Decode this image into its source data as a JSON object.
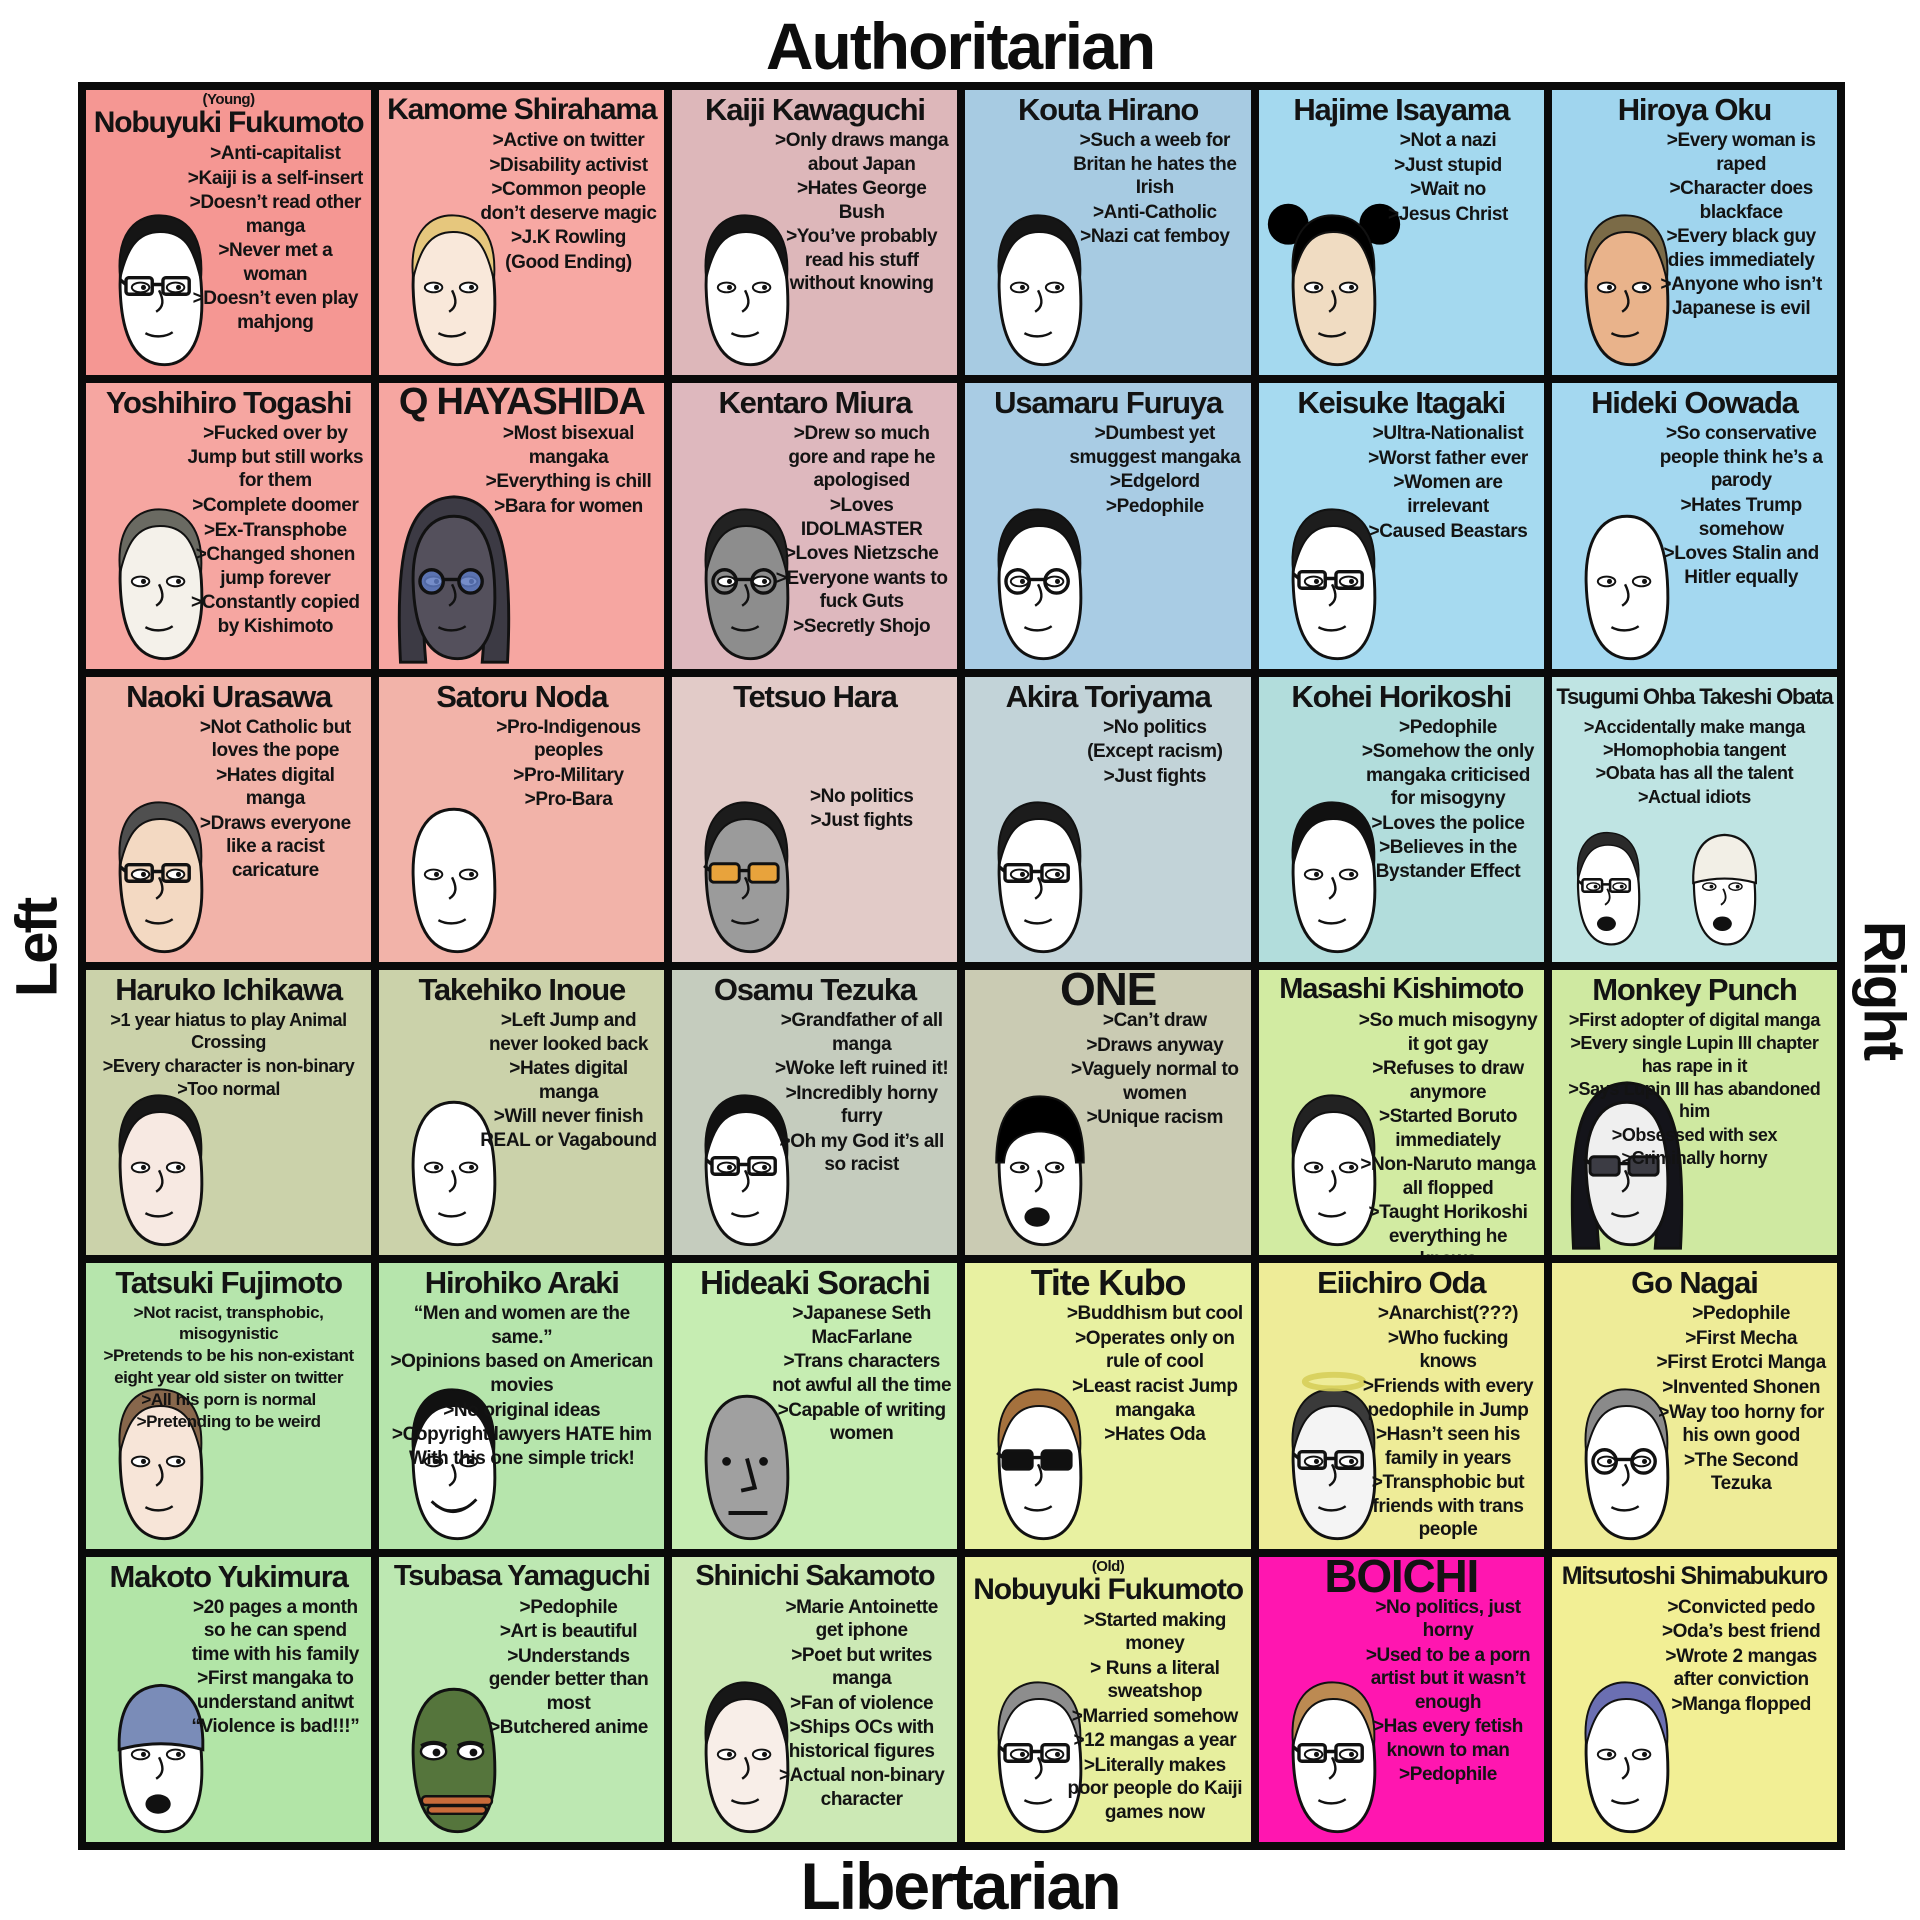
{
  "axes": {
    "top": "Authoritarian",
    "bottom": "Libertarian",
    "left": "Left",
    "right": "Right"
  },
  "cells": [
    {
      "name": "Nobuyuki Fukumoto",
      "prefix": "(Young)",
      "bg": "#f59793",
      "nameSize": 30,
      "bullets": [
        ">Anti-capitalist",
        ">Kaiji is a self-insert",
        ">Doesn’t read other manga",
        ">Never met a woman",
        ">Doesn’t even play mahjong"
      ],
      "face": {
        "skin": "#ffffff",
        "hair": "#151515",
        "style": "hair",
        "glasses": "rect"
      }
    },
    {
      "name": "Kamome Shirahama",
      "bg": "#f7a8a3",
      "nameSize": 30,
      "bullets": [
        ">Active on twitter",
        ">Disability activist",
        ">Common people don’t deserve magic",
        ">J.K Rowling",
        "(Good Ending)"
      ],
      "face": {
        "skin": "#f9e8da",
        "hair": "#e6c77d",
        "style": "hair"
      }
    },
    {
      "name": "Kaiji Kawaguchi",
      "bg": "#ddb7ba",
      "bullets": [
        ">Only draws manga about Japan",
        ">Hates George Bush",
        ">You’ve probably read his stuff without knowing"
      ],
      "face": {
        "skin": "#ffffff",
        "hair": "#151515",
        "style": "hair"
      }
    },
    {
      "name": "Kouta Hirano",
      "bg": "#a7cbe2",
      "bullets": [
        ">Such a weeb for Britan he hates the Irish",
        ">Anti-Catholic",
        ">Nazi cat femboy"
      ],
      "face": {
        "skin": "#ffffff",
        "hair": "#151515",
        "style": "hair"
      }
    },
    {
      "name": "Hajime Isayama",
      "bg": "#a4d9ef",
      "bullets": [
        ">Not a nazi",
        ">Just stupid",
        ">Wait no",
        ">Jesus Christ"
      ],
      "face": {
        "skin": "#f0dcc2",
        "hair": "#000000",
        "style": "ears"
      }
    },
    {
      "name": "Hiroya Oku",
      "bg": "#a0d5ee",
      "bullets": [
        ">Every woman is raped",
        ">Character does blackface",
        ">Every black guy dies immediately",
        ">Anyone who isn’t Japanese is evil"
      ],
      "face": {
        "skin": "#e9b38b",
        "hair": "#7b6b47",
        "style": "hair"
      }
    },
    {
      "name": "Yoshihiro Togashi",
      "bg": "#f6a6a1",
      "bullets": [
        ">Fucked over by Jump but still works for them",
        ">Complete doomer",
        ">Ex-Transphobe",
        ">Changed shonen jump forever",
        ">Constantly copied by Kishimoto"
      ],
      "face": {
        "skin": "#f4f1ea",
        "hair": "#6a6a62",
        "style": "hair"
      }
    },
    {
      "name": "Q HAYASHIDA",
      "bg": "#f6a6a1",
      "nameSize": 38,
      "bullets": [
        ">Most bisexual mangaka",
        ">Everything is chill",
        ">Bara for women"
      ],
      "face": {
        "skin": "#54505c",
        "hair": "#3c3a44",
        "style": "hood",
        "glasses": "round",
        "gfill": "#5d79c0"
      }
    },
    {
      "name": "Kentaro Miura",
      "bg": "#deb8be",
      "bullets": [
        ">Drew so much gore and rape he apologised",
        ">Loves IDOLMASTER",
        ">Loves Nietzsche",
        ">Everyone wants to fuck Guts",
        ">Secretly  Shojo"
      ],
      "face": {
        "skin": "#8d8d8d",
        "hair": "#222222",
        "style": "hair",
        "glasses": "round"
      }
    },
    {
      "name": "Usamaru Furuya",
      "bg": "#a9cce4",
      "bullets": [
        ">Dumbest yet smuggest mangaka",
        ">Edgelord",
        ">Pedophile"
      ],
      "face": {
        "skin": "#ffffff",
        "hair": "#151515",
        "style": "hair",
        "glasses": "round"
      }
    },
    {
      "name": "Keisuke Itagaki",
      "bg": "#a6daf0",
      "bullets": [
        ">Ultra-Nationalist",
        ">Worst father ever",
        ">Women are irrelevant",
        ">Caused Beastars"
      ],
      "face": {
        "skin": "#ffffff",
        "hair": "#1d1d1d",
        "style": "hair",
        "glasses": "rect"
      }
    },
    {
      "name": "Hideki Oowada",
      "bg": "#a4d8f0",
      "bullets": [
        ">So conservative people think he’s a parody",
        ">Hates Trump somehow",
        ">Loves Stalin and Hitler equally"
      ],
      "face": {
        "skin": "#ffffff",
        "style": "bald"
      }
    },
    {
      "name": "Naoki Urasawa",
      "bg": "#f2b3a9",
      "bullets": [
        ">Not Catholic but loves the pope",
        ">Hates digital manga",
        ">Draws everyone like a racist caricature"
      ],
      "face": {
        "skin": "#f3d9c2",
        "hair": "#4f4f4f",
        "style": "hair",
        "glasses": "rect"
      }
    },
    {
      "name": "Satoru Noda",
      "bg": "#f2b3a9",
      "bullets": [
        ">Pro-Indigenous peoples",
        ">Pro-Military",
        ">Pro-Bara"
      ],
      "face": {
        "skin": "#ffffff",
        "style": "bald"
      }
    },
    {
      "name": "Tetsuo Hara",
      "bg": "#e2cbc8",
      "mid": true,
      "bullets": [
        ">No politics",
        ">Just fights"
      ],
      "face": {
        "skin": "#9b9b9b",
        "hair": "#1c1c1c",
        "style": "hair",
        "glasses": "sun",
        "gfill": "#e8a33c"
      }
    },
    {
      "name": "Akira Toriyama",
      "bg": "#c2d3d8",
      "bullets": [
        ">No politics",
        "(Except racism)",
        ">Just fights"
      ],
      "face": {
        "skin": "#ffffff",
        "hair": "#1c1c1c",
        "style": "hair",
        "glasses": "rect"
      }
    },
    {
      "name": "Kohei Horikoshi",
      "bg": "#b2dddc",
      "bullets": [
        ">Pedophile",
        ">Somehow the only mangaka criticised for misogyny",
        ">Loves the police",
        ">Believes in the Bystander Effect"
      ],
      "face": {
        "skin": "#ffffff",
        "hair": "#111111",
        "style": "hair"
      }
    },
    {
      "name": "Tsugumi Ohba   Takeshi Obata",
      "bg": "#bfe4e3",
      "nameSize": 22,
      "wide": true,
      "bulletSize": 18,
      "bullets": [
        ">Accidentally make manga",
        ">Homophobia tangent",
        ">Obata has all the talent",
        ">Actual idiots"
      ],
      "face": {
        "duo": [
          {
            "skin": "#ffffff",
            "hair": "#2a2a2a",
            "style": "hair",
            "glasses": "rect",
            "extra": "open"
          },
          {
            "skin": "#ffffff",
            "style": "beanie",
            "hat": "#f2efe6",
            "extra": "open"
          }
        ]
      }
    },
    {
      "name": "Haruko Ichikawa",
      "bg": "#cbd2aa",
      "wide": true,
      "bulletSize": 18,
      "bullets": [
        ">1 year hiatus to play  Animal Crossing",
        ">Every character is non-binary",
        ">Too normal"
      ],
      "face": {
        "skin": "#f7e9e2",
        "hair": "#171717",
        "style": "hair"
      }
    },
    {
      "name": "Takehiko Inoue",
      "bg": "#cbd2aa",
      "bullets": [
        ">Left Jump and never looked back",
        ">Hates digital manga",
        ">Will never finish REAL or Vagabound"
      ],
      "face": {
        "skin": "#ffffff",
        "style": "bald"
      }
    },
    {
      "name": "Osamu Tezuka",
      "bg": "#c5ccbe",
      "bullets": [
        ">Grandfather of all manga",
        ">Woke left ruined it!",
        ">Incredibly horny furry",
        ">Oh my God it’s all so racist"
      ],
      "face": {
        "skin": "#ffffff",
        "hair": "#111111",
        "style": "hair",
        "glasses": "rect"
      }
    },
    {
      "name": "ONE",
      "bg": "#cacbb3",
      "nameSize": 46,
      "bullets": [
        ">Can’t draw",
        ">Draws anyway",
        ">Vaguely normal to women",
        ">Unique racism"
      ],
      "face": {
        "skin": "#ffffff",
        "hair": "#000000",
        "style": "bowl",
        "extra": "open"
      }
    },
    {
      "name": "Masashi Kishimoto",
      "bg": "#d2eba2",
      "nameSize": 29,
      "bullets": [
        ">So much misogyny it got gay",
        ">Refuses to draw anymore",
        ">Started Boruto immediately",
        ">Non-Naruto manga all flopped",
        ">Taught Horikoshi everything he knows"
      ],
      "face": {
        "skin": "#ffffff",
        "hair": "#222222",
        "style": "hair"
      }
    },
    {
      "name": "Monkey Punch",
      "bg": "#cfe9a1",
      "wide": true,
      "bulletSize": 18,
      "bullets": [
        ">First adopter of digital manga",
        ">Every single Lupin III chapter has rape in it",
        ">Says Lupin III has abandoned him",
        ">Obsessed with sex",
        ">Criminally horny"
      ],
      "face": {
        "skin": "#efefef",
        "hair": "#14141a",
        "style": "hood",
        "glasses": "sun",
        "gfill": "#3c3c44"
      }
    },
    {
      "name": "Tatsuki Fujimoto",
      "bg": "#b6e5ac",
      "wide": true,
      "bulletSize": 17,
      "bullets": [
        ">Not racist, transphobic, misogynistic",
        ">Pretends to be his non-existant eight year old sister on twitter",
        ">All his porn is normal",
        ">Pretending to be weird"
      ],
      "face": {
        "skin": "#f7e5d8",
        "hair": "#87674c",
        "style": "hair"
      }
    },
    {
      "name": "Hirohiko Araki",
      "bg": "#b6e5ac",
      "wide": true,
      "bullets": [
        "“Men and women are the same.”",
        ">Opinions based on American movies",
        ">No original ideas",
        ">Copyright lawyers HATE him With this one simple trick!"
      ],
      "face": {
        "skin": "#ffffff",
        "hair": "#111111",
        "style": "hair",
        "extra": "grin"
      }
    },
    {
      "name": "Hideaki Sorachi",
      "bg": "#c6edb2",
      "nameSize": 33,
      "bullets": [
        ">Japanese Seth MacFarlane",
        ">Trans characters not awful all the time",
        ">Capable of writing women"
      ],
      "face": {
        "skin": "#a0a0a0",
        "style": "bald",
        "extra": "npc"
      }
    },
    {
      "name": "Tite Kubo",
      "bg": "#e8f1a1",
      "nameSize": 36,
      "bullets": [
        ">Buddhism but cool",
        ">Operates only on rule of cool",
        ">Least racist Jump mangaka",
        ">Hates Oda"
      ],
      "face": {
        "skin": "#ffffff",
        "hair": "#a5713d",
        "style": "hair",
        "glasses": "sun",
        "gfill": "#101010"
      }
    },
    {
      "name": "Eiichiro Oda",
      "bg": "#eeec98",
      "bullets": [
        ">Anarchist(???)",
        ">Who fucking knows",
        ">Friends with every pedophile in Jump",
        ">Hasn’t seen his family in years",
        ">Transphobic but friends with trans people"
      ],
      "face": {
        "skin": "#f4f4f4",
        "hair": "#3a3a3a",
        "style": "hair",
        "glasses": "rect",
        "extra": "halo"
      }
    },
    {
      "name": "Go Nagai",
      "bg": "#eeec98",
      "bullets": [
        ">Pedophile",
        ">First Mecha",
        ">First Erotci Manga",
        ">Invented Shonen",
        ">Way too horny for his own good",
        ">The Second Tezuka"
      ],
      "face": {
        "skin": "#ffffff",
        "hair": "#8a8a8a",
        "style": "hair",
        "glasses": "round"
      }
    },
    {
      "name": "Makoto Yukimura",
      "bg": "#b2e5a7",
      "bullets": [
        ">20 pages a month so he can spend time with his family",
        ">First mangaka to understand anitwt",
        "“Violence is bad!!!”"
      ],
      "face": {
        "skin": "#ffffff",
        "style": "beanie",
        "hat": "#7a8cb8",
        "extra": "open"
      }
    },
    {
      "name": "Tsubasa Yamaguchi",
      "bg": "#bde8b2",
      "nameSize": 29,
      "bullets": [
        ">Pedophile",
        ">Art is beautiful",
        ">Understands gender better than most",
        ">Butchered anime"
      ],
      "face": {
        "skin": "#55753c",
        "style": "bald",
        "extra": "pepe"
      }
    },
    {
      "name": "Shinichi Sakamoto",
      "bg": "#cce9b5",
      "nameSize": 29,
      "bullets": [
        ">Marie Antoinette get iphone",
        ">Poet but writes manga",
        ">Fan of violence",
        ">Ships OCs with historical figures",
        ">Actual non-binary character"
      ],
      "face": {
        "skin": "#f8eee8",
        "hair": "#171717",
        "style": "hair"
      }
    },
    {
      "name": "Nobuyuki Fukumoto",
      "prefix": "(Old)",
      "bg": "#e7ef9e",
      "nameSize": 30,
      "bullets": [
        ">Started making money",
        "> Runs a literal sweatshop",
        ">Married somehow",
        ">12 mangas a year",
        ">Literally makes poor people do Kaiji games now"
      ],
      "face": {
        "skin": "#ffffff",
        "hair": "#8d8d8d",
        "style": "hair",
        "glasses": "rect"
      }
    },
    {
      "name": "BOICHI",
      "bg": "#ff16b0",
      "nameSize": 46,
      "bullets": [
        ">No politics, just horny",
        ">Used to be a porn artist but it wasn’t enough",
        ">Has every fetish known to man",
        ">Pedophile"
      ],
      "face": {
        "skin": "#ffffff",
        "hair": "#bc8a52",
        "style": "hair",
        "glasses": "rect"
      }
    },
    {
      "name": "Mitsutoshi Shimabukuro",
      "bg": "#f2ef95",
      "nameSize": 25,
      "bullets": [
        ">Convicted pedo",
        ">Oda’s best friend",
        ">Wrote 2 mangas after conviction",
        ">Manga flopped"
      ],
      "face": {
        "skin": "#ffffff",
        "hair": "#6b6fb2",
        "style": "hair"
      }
    }
  ]
}
